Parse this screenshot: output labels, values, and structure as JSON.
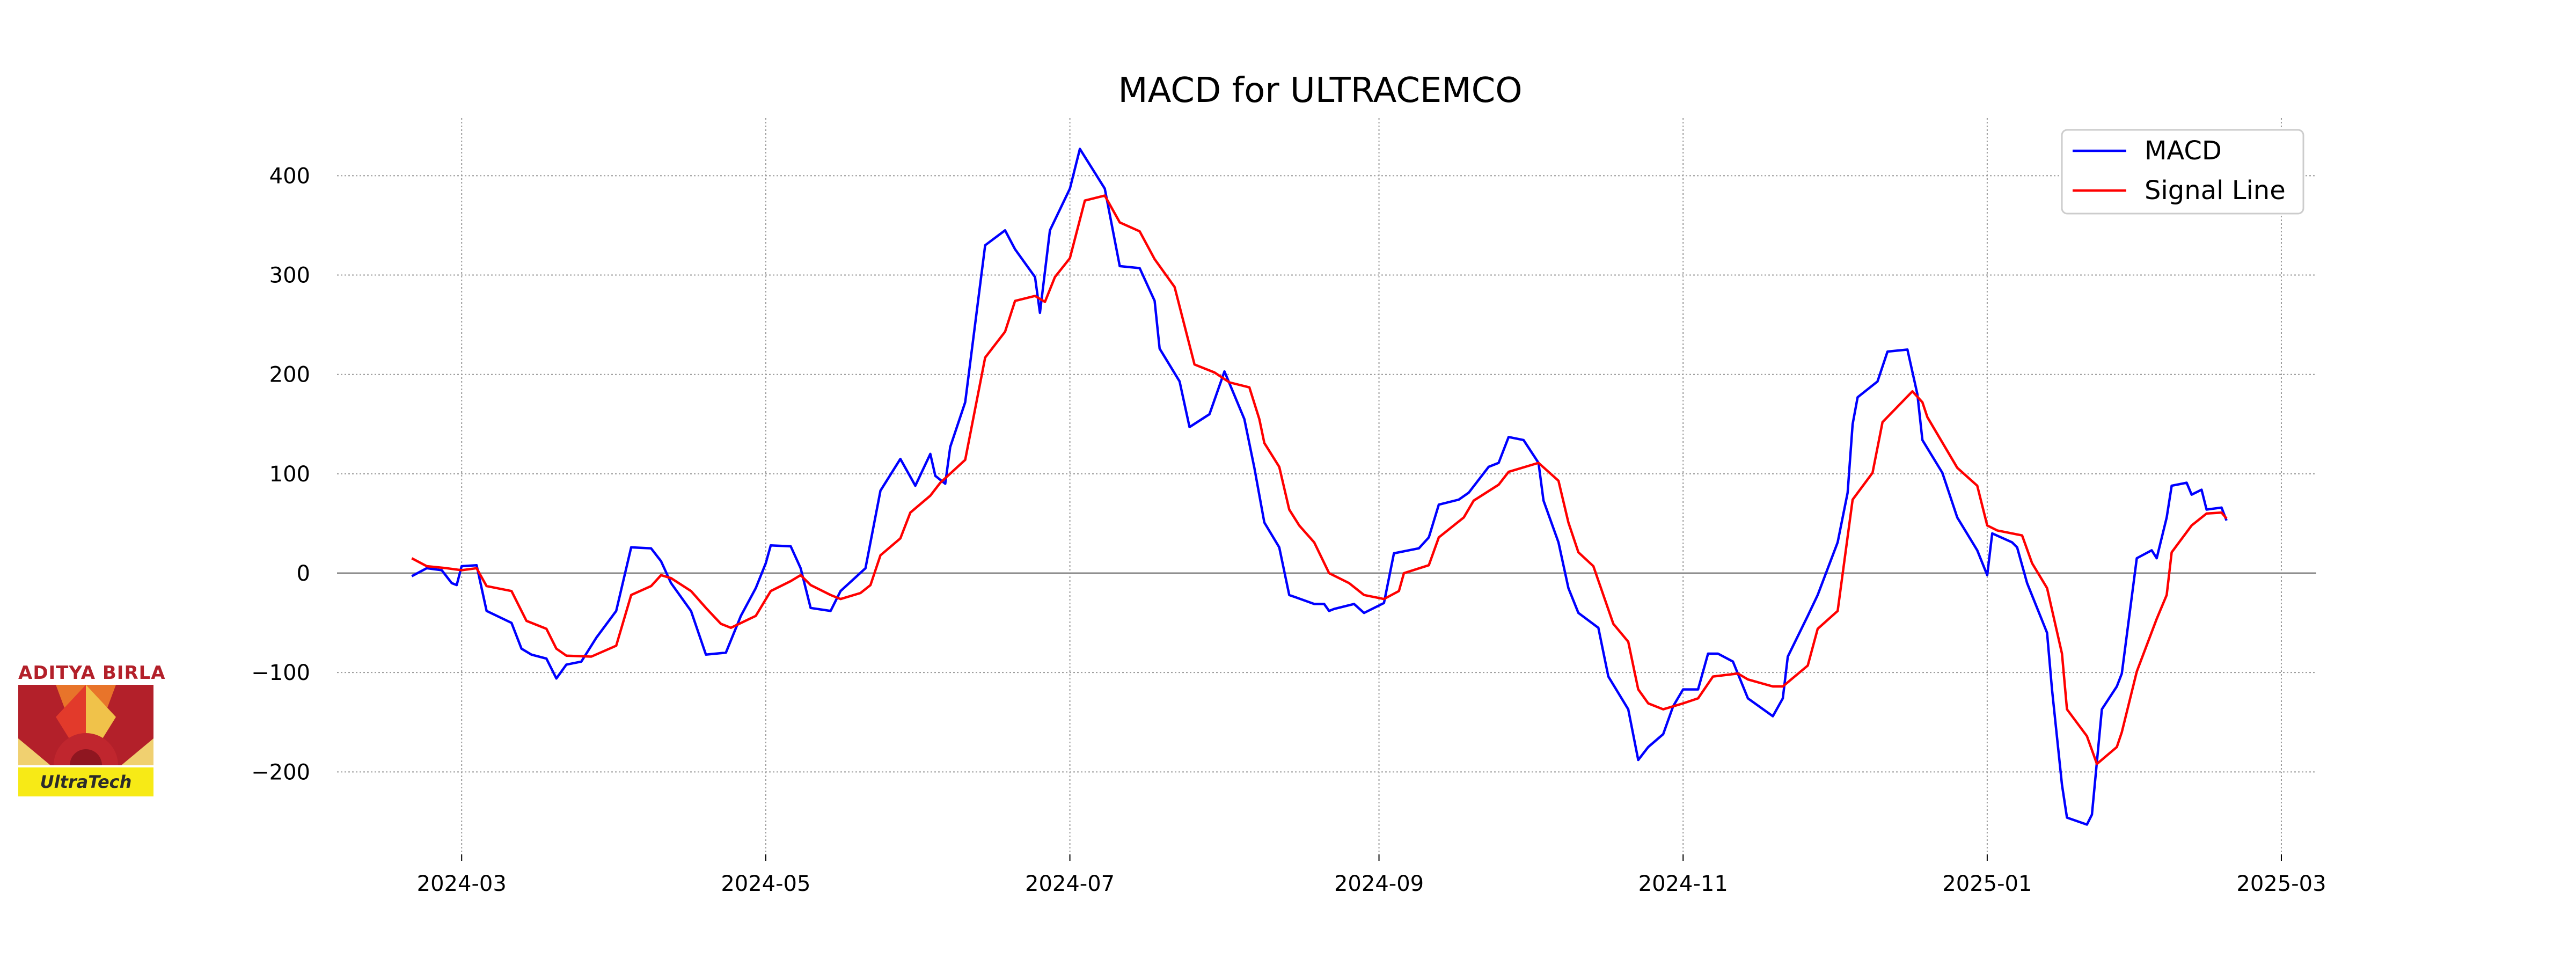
{
  "logo": {
    "top_text": "ADITYA BIRLA",
    "bottom_text": "UltraTech"
  },
  "chart_data": {
    "type": "line",
    "title": "MACD for ULTRACEMCO",
    "xlabel": "",
    "ylabel": "",
    "xlim": [
      "2024-02-05",
      "2025-03-08"
    ],
    "ylim": [
      -283,
      458
    ],
    "grid": true,
    "legend_position": "top-right",
    "x_ticks": [
      "2024-03",
      "2024-05",
      "2024-07",
      "2024-09",
      "2024-11",
      "2025-01",
      "2025-03"
    ],
    "y_ticks": [
      -200,
      -100,
      0,
      100,
      200,
      300,
      400
    ],
    "zero_line": 0,
    "series": [
      {
        "name": "MACD",
        "color": "#0000ff",
        "points": [
          [
            "2024-02-20",
            -3
          ],
          [
            "2024-02-23",
            5
          ],
          [
            "2024-02-26",
            3
          ],
          [
            "2024-02-28",
            -10
          ],
          [
            "2024-02-29",
            -12
          ],
          [
            "2024-03-01",
            7
          ],
          [
            "2024-03-04",
            8
          ],
          [
            "2024-03-06",
            -38
          ],
          [
            "2024-03-11",
            -50
          ],
          [
            "2024-03-13",
            -76
          ],
          [
            "2024-03-15",
            -82
          ],
          [
            "2024-03-18",
            -86
          ],
          [
            "2024-03-20",
            -106
          ],
          [
            "2024-03-22",
            -92
          ],
          [
            "2024-03-25",
            -89
          ],
          [
            "2024-03-28",
            -65
          ],
          [
            "2024-04-01",
            -38
          ],
          [
            "2024-04-04",
            26
          ],
          [
            "2024-04-08",
            25
          ],
          [
            "2024-04-10",
            12
          ],
          [
            "2024-04-12",
            -10
          ],
          [
            "2024-04-16",
            -38
          ],
          [
            "2024-04-19",
            -82
          ],
          [
            "2024-04-23",
            -80
          ],
          [
            "2024-04-26",
            -43
          ],
          [
            "2024-04-29",
            -15
          ],
          [
            "2024-05-01",
            10
          ],
          [
            "2024-05-02",
            28
          ],
          [
            "2024-05-06",
            27
          ],
          [
            "2024-05-08",
            5
          ],
          [
            "2024-05-10",
            -35
          ],
          [
            "2024-05-14",
            -38
          ],
          [
            "2024-05-16",
            -18
          ],
          [
            "2024-05-21",
            5
          ],
          [
            "2024-05-24",
            83
          ],
          [
            "2024-05-28",
            115
          ],
          [
            "2024-05-31",
            88
          ],
          [
            "2024-06-03",
            120
          ],
          [
            "2024-06-04",
            98
          ],
          [
            "2024-06-06",
            90
          ],
          [
            "2024-06-07",
            127
          ],
          [
            "2024-06-10",
            172
          ],
          [
            "2024-06-14",
            330
          ],
          [
            "2024-06-18",
            345
          ],
          [
            "2024-06-20",
            326
          ],
          [
            "2024-06-24",
            298
          ],
          [
            "2024-06-25",
            262
          ],
          [
            "2024-06-27",
            345
          ],
          [
            "2024-07-01",
            387
          ],
          [
            "2024-07-03",
            427
          ],
          [
            "2024-07-05",
            411
          ],
          [
            "2024-07-08",
            387
          ],
          [
            "2024-07-11",
            309
          ],
          [
            "2024-07-15",
            307
          ],
          [
            "2024-07-18",
            274
          ],
          [
            "2024-07-19",
            226
          ],
          [
            "2024-07-23",
            193
          ],
          [
            "2024-07-25",
            147
          ],
          [
            "2024-07-29",
            160
          ],
          [
            "2024-08-01",
            203
          ],
          [
            "2024-08-05",
            155
          ],
          [
            "2024-08-07",
            106
          ],
          [
            "2024-08-09",
            51
          ],
          [
            "2024-08-12",
            26
          ],
          [
            "2024-08-14",
            -22
          ],
          [
            "2024-08-19",
            -31
          ],
          [
            "2024-08-21",
            -31
          ],
          [
            "2024-08-22",
            -38
          ],
          [
            "2024-08-23",
            -36
          ],
          [
            "2024-08-27",
            -31
          ],
          [
            "2024-08-29",
            -40
          ],
          [
            "2024-09-02",
            -30
          ],
          [
            "2024-09-04",
            20
          ],
          [
            "2024-09-09",
            25
          ],
          [
            "2024-09-11",
            36
          ],
          [
            "2024-09-13",
            69
          ],
          [
            "2024-09-17",
            74
          ],
          [
            "2024-09-19",
            81
          ],
          [
            "2024-09-23",
            107
          ],
          [
            "2024-09-25",
            111
          ],
          [
            "2024-09-27",
            137
          ],
          [
            "2024-09-30",
            134
          ],
          [
            "2024-10-03",
            111
          ],
          [
            "2024-10-04",
            73
          ],
          [
            "2024-10-07",
            31
          ],
          [
            "2024-10-09",
            -15
          ],
          [
            "2024-10-11",
            -40
          ],
          [
            "2024-10-15",
            -55
          ],
          [
            "2024-10-17",
            -104
          ],
          [
            "2024-10-21",
            -137
          ],
          [
            "2024-10-23",
            -188
          ],
          [
            "2024-10-25",
            -175
          ],
          [
            "2024-10-28",
            -162
          ],
          [
            "2024-10-30",
            -134
          ],
          [
            "2024-11-01",
            -117
          ],
          [
            "2024-11-04",
            -117
          ],
          [
            "2024-11-06",
            -81
          ],
          [
            "2024-11-08",
            -81
          ],
          [
            "2024-11-11",
            -89
          ],
          [
            "2024-11-14",
            -126
          ],
          [
            "2024-11-19",
            -144
          ],
          [
            "2024-11-21",
            -126
          ],
          [
            "2024-11-22",
            -84
          ],
          [
            "2024-11-26",
            -43
          ],
          [
            "2024-11-28",
            -22
          ],
          [
            "2024-12-02",
            31
          ],
          [
            "2024-12-04",
            81
          ],
          [
            "2024-12-05",
            150
          ],
          [
            "2024-12-06",
            177
          ],
          [
            "2024-12-10",
            193
          ],
          [
            "2024-12-12",
            223
          ],
          [
            "2024-12-16",
            225
          ],
          [
            "2024-12-18",
            180
          ],
          [
            "2024-12-19",
            134
          ],
          [
            "2024-12-23",
            101
          ],
          [
            "2024-12-26",
            56
          ],
          [
            "2024-12-30",
            23
          ],
          [
            "2025-01-01",
            -2
          ],
          [
            "2025-01-02",
            40
          ],
          [
            "2025-01-06",
            31
          ],
          [
            "2025-01-07",
            26
          ],
          [
            "2025-01-09",
            -10
          ],
          [
            "2025-01-13",
            -60
          ],
          [
            "2025-01-14",
            -117
          ],
          [
            "2025-01-16",
            -213
          ],
          [
            "2025-01-17",
            -246
          ],
          [
            "2025-01-21",
            -253
          ],
          [
            "2025-01-22",
            -243
          ],
          [
            "2025-01-24",
            -137
          ],
          [
            "2025-01-27",
            -114
          ],
          [
            "2025-01-28",
            -101
          ],
          [
            "2025-01-31",
            15
          ],
          [
            "2025-02-03",
            23
          ],
          [
            "2025-02-04",
            15
          ],
          [
            "2025-02-06",
            56
          ],
          [
            "2025-02-07",
            88
          ],
          [
            "2025-02-10",
            91
          ],
          [
            "2025-02-11",
            79
          ],
          [
            "2025-02-13",
            84
          ],
          [
            "2025-02-14",
            64
          ],
          [
            "2025-02-17",
            66
          ],
          [
            "2025-02-18",
            53
          ]
        ]
      },
      {
        "name": "Signal Line",
        "color": "#ff0000",
        "points": [
          [
            "2024-02-20",
            15
          ],
          [
            "2024-02-23",
            7
          ],
          [
            "2024-02-27",
            5
          ],
          [
            "2024-03-01",
            3
          ],
          [
            "2024-03-04",
            5
          ],
          [
            "2024-03-06",
            -13
          ],
          [
            "2024-03-11",
            -18
          ],
          [
            "2024-03-14",
            -48
          ],
          [
            "2024-03-18",
            -56
          ],
          [
            "2024-03-20",
            -76
          ],
          [
            "2024-03-22",
            -83
          ],
          [
            "2024-03-27",
            -84
          ],
          [
            "2024-04-01",
            -73
          ],
          [
            "2024-04-04",
            -22
          ],
          [
            "2024-04-08",
            -13
          ],
          [
            "2024-04-10",
            -2
          ],
          [
            "2024-04-12",
            -5
          ],
          [
            "2024-04-16",
            -18
          ],
          [
            "2024-04-19",
            -35
          ],
          [
            "2024-04-22",
            -51
          ],
          [
            "2024-04-24",
            -55
          ],
          [
            "2024-04-29",
            -43
          ],
          [
            "2024-05-02",
            -18
          ],
          [
            "2024-05-06",
            -8
          ],
          [
            "2024-05-08",
            -2
          ],
          [
            "2024-05-10",
            -12
          ],
          [
            "2024-05-14",
            -22
          ],
          [
            "2024-05-16",
            -26
          ],
          [
            "2024-05-20",
            -20
          ],
          [
            "2024-05-22",
            -12
          ],
          [
            "2024-05-24",
            18
          ],
          [
            "2024-05-28",
            35
          ],
          [
            "2024-05-30",
            61
          ],
          [
            "2024-06-03",
            78
          ],
          [
            "2024-06-05",
            91
          ],
          [
            "2024-06-10",
            114
          ],
          [
            "2024-06-14",
            217
          ],
          [
            "2024-06-18",
            243
          ],
          [
            "2024-06-20",
            274
          ],
          [
            "2024-06-24",
            279
          ],
          [
            "2024-06-26",
            273
          ],
          [
            "2024-06-28",
            298
          ],
          [
            "2024-07-01",
            317
          ],
          [
            "2024-07-04",
            375
          ],
          [
            "2024-07-08",
            380
          ],
          [
            "2024-07-11",
            353
          ],
          [
            "2024-07-15",
            344
          ],
          [
            "2024-07-18",
            316
          ],
          [
            "2024-07-22",
            288
          ],
          [
            "2024-07-26",
            210
          ],
          [
            "2024-07-30",
            202
          ],
          [
            "2024-08-02",
            192
          ],
          [
            "2024-08-06",
            187
          ],
          [
            "2024-08-08",
            155
          ],
          [
            "2024-08-09",
            131
          ],
          [
            "2024-08-12",
            107
          ],
          [
            "2024-08-14",
            64
          ],
          [
            "2024-08-16",
            48
          ],
          [
            "2024-08-19",
            31
          ],
          [
            "2024-08-22",
            0
          ],
          [
            "2024-08-26",
            -10
          ],
          [
            "2024-08-29",
            -22
          ],
          [
            "2024-09-02",
            -26
          ],
          [
            "2024-09-05",
            -18
          ],
          [
            "2024-09-06",
            0
          ],
          [
            "2024-09-11",
            8
          ],
          [
            "2024-09-13",
            36
          ],
          [
            "2024-09-18",
            56
          ],
          [
            "2024-09-20",
            73
          ],
          [
            "2024-09-25",
            89
          ],
          [
            "2024-09-27",
            102
          ],
          [
            "2024-10-03",
            111
          ],
          [
            "2024-10-07",
            93
          ],
          [
            "2024-10-09",
            51
          ],
          [
            "2024-10-11",
            21
          ],
          [
            "2024-10-14",
            7
          ],
          [
            "2024-10-18",
            -51
          ],
          [
            "2024-10-21",
            -69
          ],
          [
            "2024-10-23",
            -117
          ],
          [
            "2024-10-25",
            -131
          ],
          [
            "2024-10-28",
            -137
          ],
          [
            "2024-11-01",
            -131
          ],
          [
            "2024-11-04",
            -126
          ],
          [
            "2024-11-07",
            -104
          ],
          [
            "2024-11-12",
            -101
          ],
          [
            "2024-11-14",
            -107
          ],
          [
            "2024-11-19",
            -114
          ],
          [
            "2024-11-21",
            -114
          ],
          [
            "2024-11-26",
            -93
          ],
          [
            "2024-11-28",
            -56
          ],
          [
            "2024-12-02",
            -38
          ],
          [
            "2024-12-05",
            74
          ],
          [
            "2024-12-09",
            101
          ],
          [
            "2024-12-11",
            152
          ],
          [
            "2024-12-17",
            183
          ],
          [
            "2024-12-19",
            172
          ],
          [
            "2024-12-20",
            157
          ],
          [
            "2024-12-26",
            106
          ],
          [
            "2024-12-30",
            88
          ],
          [
            "2025-01-01",
            48
          ],
          [
            "2025-01-03",
            43
          ],
          [
            "2025-01-08",
            38
          ],
          [
            "2025-01-10",
            10
          ],
          [
            "2025-01-13",
            -15
          ],
          [
            "2025-01-16",
            -81
          ],
          [
            "2025-01-17",
            -137
          ],
          [
            "2025-01-21",
            -164
          ],
          [
            "2025-01-23",
            -192
          ],
          [
            "2025-01-27",
            -175
          ],
          [
            "2025-01-28",
            -160
          ],
          [
            "2025-01-31",
            -99
          ],
          [
            "2025-02-04",
            -46
          ],
          [
            "2025-02-06",
            -22
          ],
          [
            "2025-02-07",
            21
          ],
          [
            "2025-02-11",
            48
          ],
          [
            "2025-02-14",
            60
          ],
          [
            "2025-02-17",
            61
          ],
          [
            "2025-02-18",
            55
          ]
        ]
      }
    ]
  }
}
